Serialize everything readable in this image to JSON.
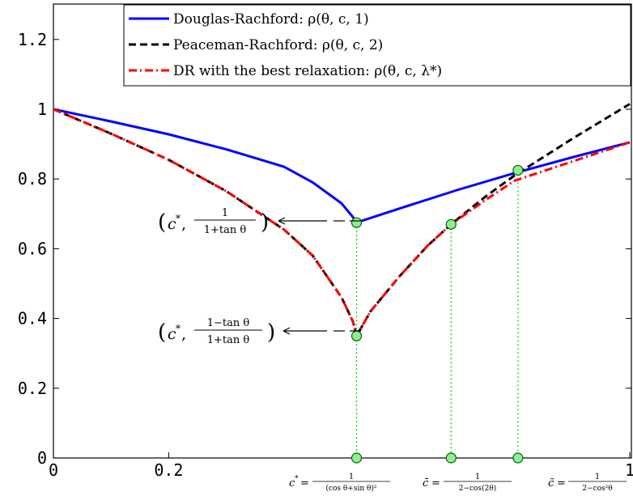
{
  "chart_data": {
    "type": "line",
    "xlim": [
      0,
      1
    ],
    "ylim": [
      0,
      1.3
    ],
    "x_ticks": [
      "0",
      "0.2",
      "1"
    ],
    "y_ticks": [
      "0",
      "0.2",
      "0.4",
      "0.6",
      "0.8",
      "1",
      "1.2"
    ],
    "grid": false,
    "legend_position": "top-right",
    "colors": {
      "dr": "#0000ff",
      "pr": "#000000",
      "best": "#ff0000",
      "edge_markers": "#00c800",
      "marker_fill": "#90ee90"
    },
    "series": [
      {
        "name": "Douglas-Rachford: ρ(θ, c, 1)",
        "style": "solid",
        "points": [
          [
            0,
            1
          ],
          [
            0.1,
            0.965
          ],
          [
            0.2,
            0.928
          ],
          [
            0.3,
            0.885
          ],
          [
            0.4,
            0.835
          ],
          [
            0.45,
            0.79
          ],
          [
            0.5,
            0.73
          ],
          [
            0.52,
            0.69
          ],
          [
            0.526,
            0.675
          ],
          [
            0.6,
            0.715
          ],
          [
            0.7,
            0.768
          ],
          [
            0.8,
            0.817
          ],
          [
            0.9,
            0.862
          ],
          [
            1.0,
            0.905
          ]
        ]
      },
      {
        "name": "Peaceman-Rachford: ρ(θ, c, 2)",
        "style": "dashed",
        "points": [
          [
            0,
            1
          ],
          [
            0.1,
            0.93
          ],
          [
            0.2,
            0.855
          ],
          [
            0.3,
            0.765
          ],
          [
            0.4,
            0.655
          ],
          [
            0.45,
            0.58
          ],
          [
            0.5,
            0.46
          ],
          [
            0.52,
            0.39
          ],
          [
            0.526,
            0.35
          ],
          [
            0.55,
            0.42
          ],
          [
            0.6,
            0.52
          ],
          [
            0.65,
            0.61
          ],
          [
            0.69,
            0.67
          ],
          [
            0.75,
            0.75
          ],
          [
            0.8,
            0.81
          ],
          [
            0.9,
            0.915
          ],
          [
            1.0,
            1.015
          ]
        ]
      },
      {
        "name": "DR with the best relaxation: ρ(θ, c, λ*)",
        "style": "dashdot",
        "points": [
          [
            0,
            1
          ],
          [
            0.1,
            0.93
          ],
          [
            0.2,
            0.855
          ],
          [
            0.3,
            0.765
          ],
          [
            0.4,
            0.655
          ],
          [
            0.45,
            0.58
          ],
          [
            0.5,
            0.46
          ],
          [
            0.52,
            0.39
          ],
          [
            0.526,
            0.35
          ],
          [
            0.55,
            0.42
          ],
          [
            0.6,
            0.52
          ],
          [
            0.65,
            0.61
          ],
          [
            0.69,
            0.67
          ],
          [
            0.75,
            0.74
          ],
          [
            0.8,
            0.795
          ],
          [
            0.9,
            0.85
          ],
          [
            1.0,
            0.905
          ]
        ]
      }
    ],
    "markers": [
      [
        0.526,
        0.675
      ],
      [
        0.526,
        0.35
      ],
      [
        0.69,
        0.67
      ],
      [
        0.806,
        0.825
      ],
      [
        0.526,
        0
      ],
      [
        0.69,
        0
      ],
      [
        0.806,
        0
      ]
    ],
    "vertical_guides": [
      [
        0.526,
        0.675
      ],
      [
        0.69,
        0.67
      ],
      [
        0.806,
        0.825
      ]
    ],
    "annotations": [
      {
        "label": "(c*, 1/(1+tan θ))",
        "x": 0.526,
        "y": 0.675
      },
      {
        "label": "(c*, (1−tan θ)/(1+tan θ))",
        "x": 0.526,
        "y": 0.35
      }
    ],
    "x_markers": [
      {
        "label": "c* = 1/(cos θ+sin θ)²",
        "x": 0.526
      },
      {
        "label": "c̄ = 1/(2−cos(2θ))",
        "x": 0.69
      },
      {
        "label": "c̃ = 1/(2−cos²θ)",
        "x": 0.806
      }
    ]
  }
}
